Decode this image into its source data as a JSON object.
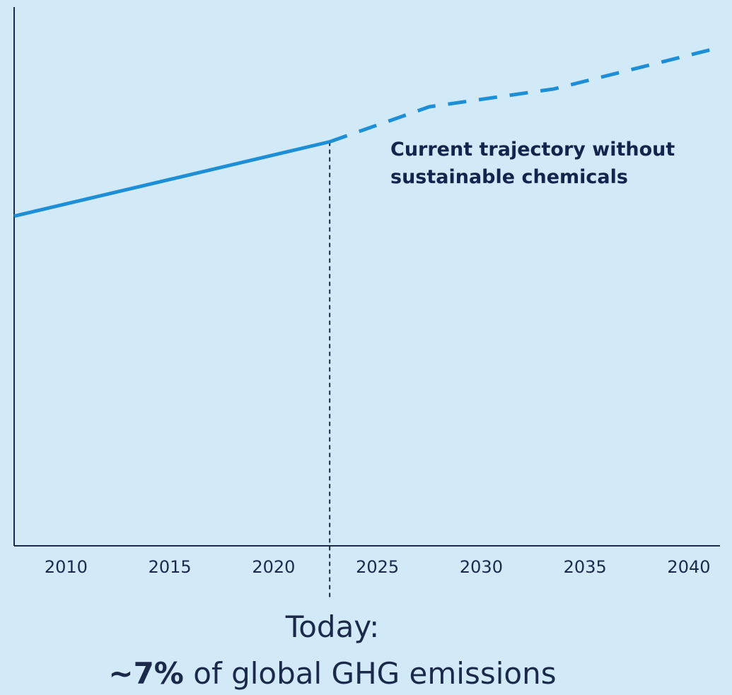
{
  "chart_data": {
    "type": "line",
    "title": "",
    "xlabel": "",
    "ylabel": "",
    "xlim": [
      2007.5,
      2041.5
    ],
    "ylim": [
      0,
      100
    ],
    "x_ticks": [
      "2010",
      "2015",
      "2020",
      "2025",
      "2030",
      "2035",
      "2040"
    ],
    "grid": false,
    "series": [
      {
        "style": "solid",
        "color": "#1e8fd6",
        "points": [
          [
            2007.5,
            61.2
          ],
          [
            2022.7,
            75
          ]
        ]
      },
      {
        "style": "dashed",
        "color": "#1e8fd6",
        "points": [
          [
            2022.7,
            75
          ],
          [
            2027.5,
            81.5
          ],
          [
            2033.5,
            84.8
          ],
          [
            2041.5,
            92.5
          ]
        ]
      }
    ],
    "reference_line": {
      "x": 2022.7,
      "style": "dashed",
      "color": "#1b2a4a"
    },
    "annotation": {
      "line1": "Current trajectory without",
      "line2": "sustainable chemicals"
    }
  },
  "caption": {
    "today": "Today:",
    "share_value": "~7%",
    "share_rest": " of global GHG emissions"
  }
}
